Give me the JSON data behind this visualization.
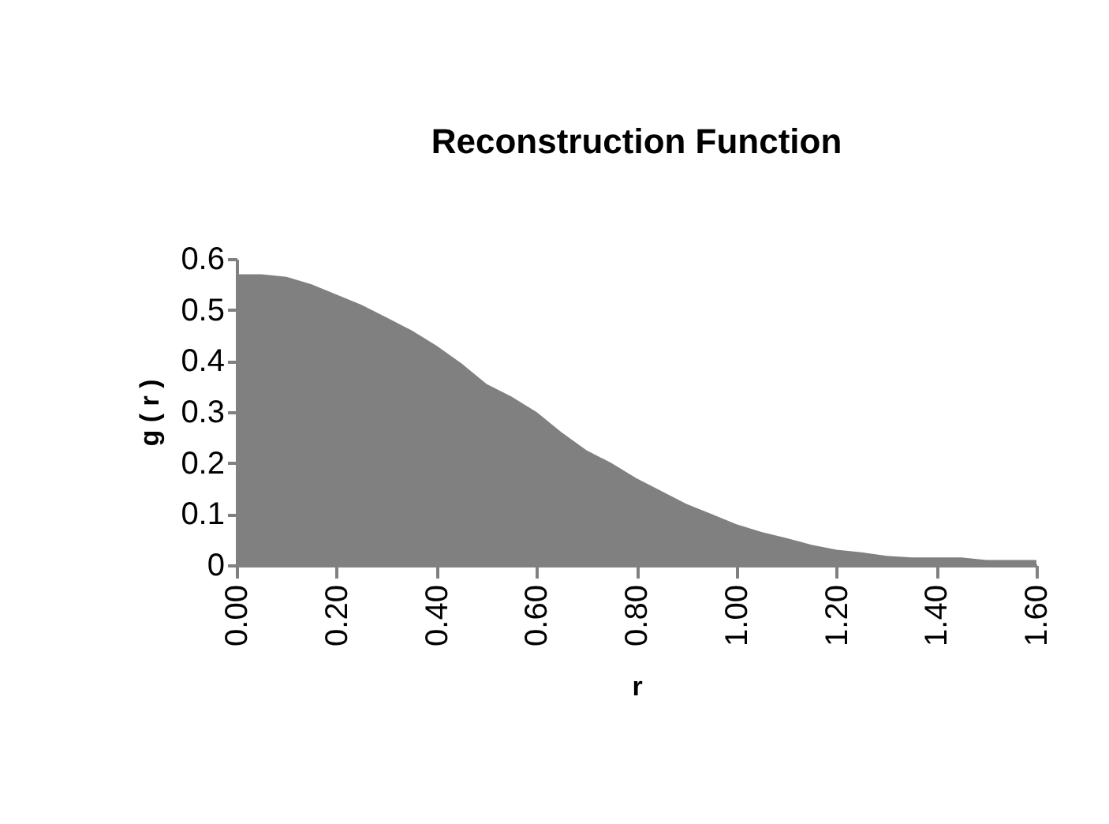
{
  "chart_data": {
    "type": "area",
    "title": "Reconstruction   Function",
    "xlabel": "r",
    "ylabel": "g ( r )",
    "x": [
      0,
      0.05,
      0.1,
      0.15,
      0.2,
      0.25,
      0.3,
      0.35,
      0.4,
      0.45,
      0.5,
      0.55,
      0.6,
      0.65,
      0.7,
      0.75,
      0.8,
      0.85,
      0.9,
      0.95,
      1.0,
      1.05,
      1.1,
      1.15,
      1.2,
      1.25,
      1.3,
      1.35,
      1.4,
      1.45,
      1.5,
      1.55,
      1.6
    ],
    "series": [
      {
        "color": "#808080",
        "values": [
          0.57,
          0.57,
          0.565,
          0.55,
          0.53,
          0.51,
          0.485,
          0.46,
          0.43,
          0.395,
          0.355,
          0.33,
          0.3,
          0.26,
          0.225,
          0.2,
          0.17,
          0.145,
          0.12,
          0.1,
          0.08,
          0.065,
          0.053,
          0.04,
          0.03,
          0.025,
          0.018,
          0.015,
          0.015,
          0.015,
          0.01,
          0.01,
          0.01
        ]
      }
    ],
    "xlim": [
      0,
      1.6
    ],
    "ylim": [
      0,
      0.6
    ],
    "xticks": [
      {
        "value": 0,
        "label": "0.00"
      },
      {
        "value": 0.2,
        "label": "0.20"
      },
      {
        "value": 0.4,
        "label": "0.40"
      },
      {
        "value": 0.6,
        "label": "0.60"
      },
      {
        "value": 0.8,
        "label": "0.80"
      },
      {
        "value": 1.0,
        "label": "1.00"
      },
      {
        "value": 1.2,
        "label": "1.20"
      },
      {
        "value": 1.4,
        "label": "1.40"
      },
      {
        "value": 1.6,
        "label": "1.60"
      }
    ],
    "yticks": [
      0,
      0.1,
      0.2,
      0.3,
      0.4,
      0.5,
      0.6
    ],
    "grid": false,
    "legend": false
  }
}
